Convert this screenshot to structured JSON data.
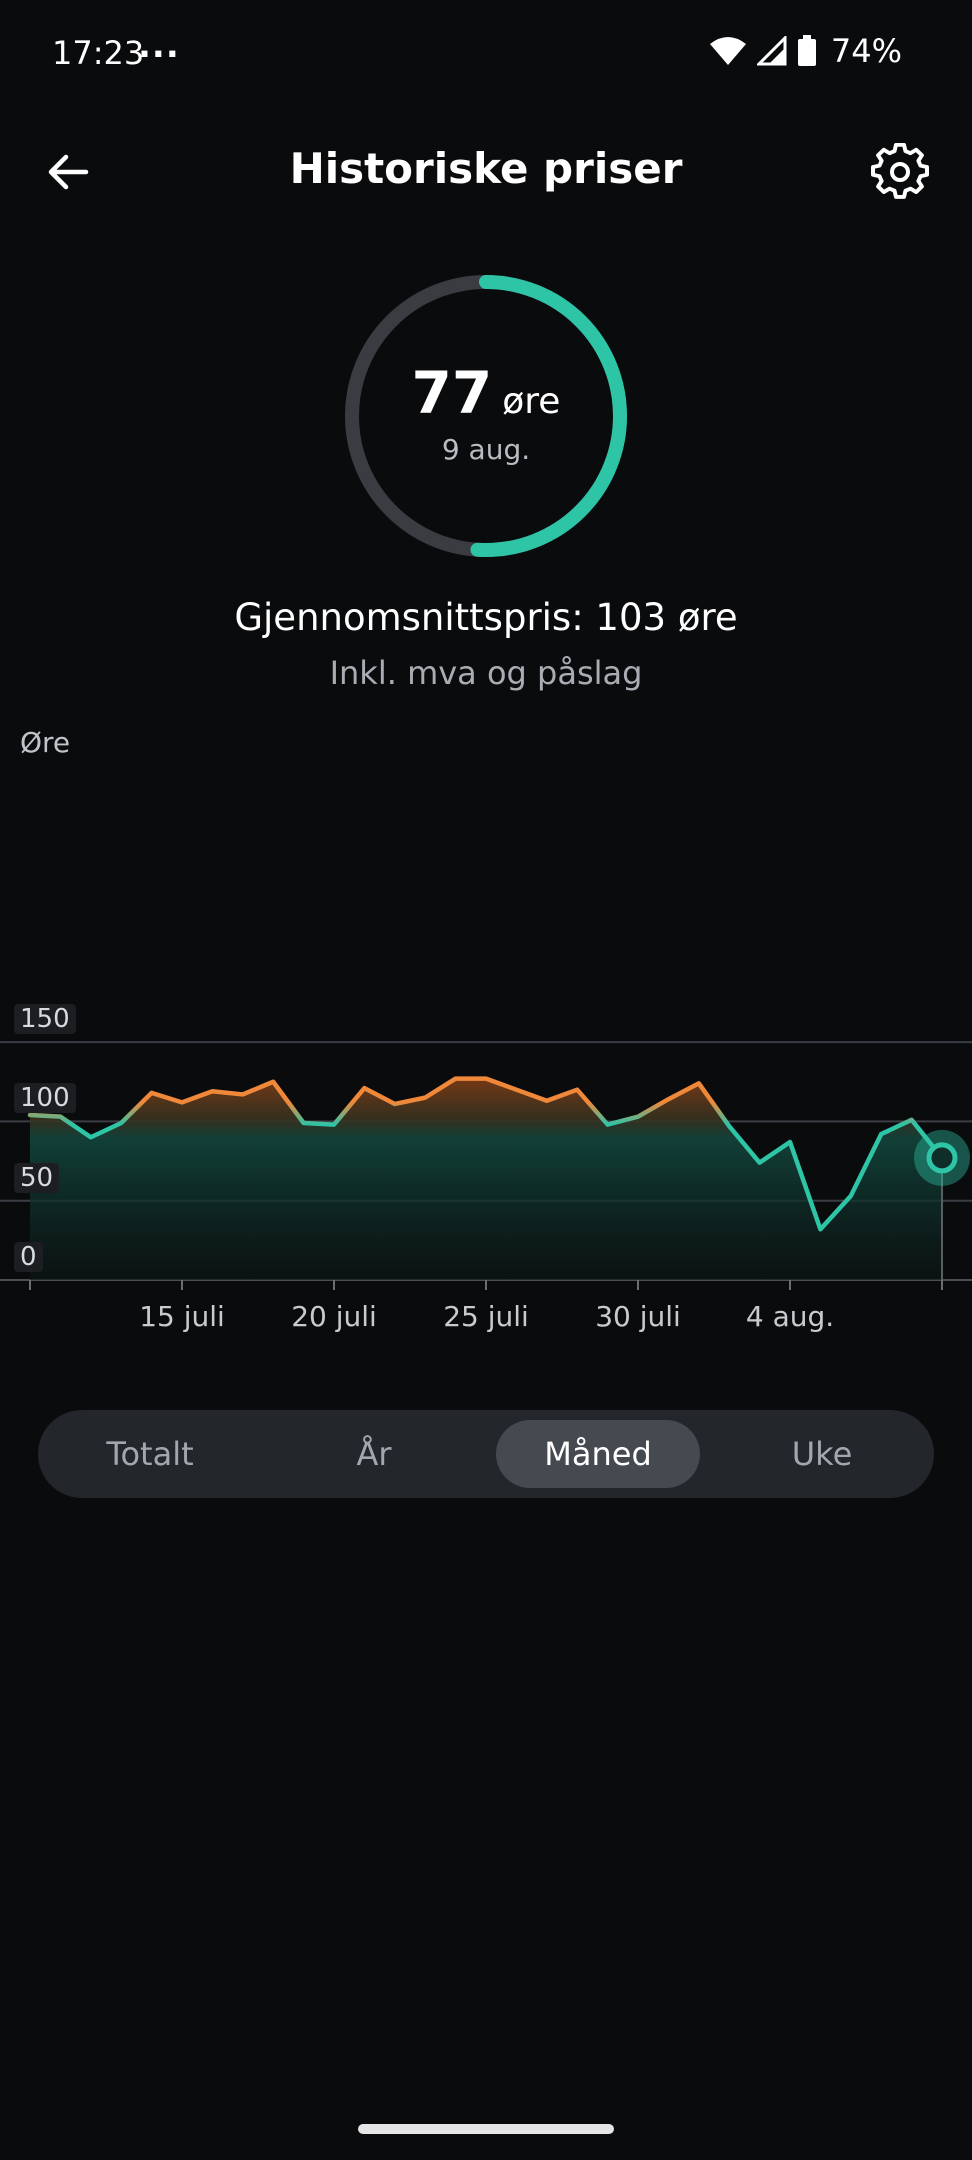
{
  "status_bar": {
    "time": "17:23",
    "dots": "...",
    "battery": "74%"
  },
  "header": {
    "title": "Historiske priser",
    "back_icon": "arrow-left-icon",
    "settings_icon": "gear-icon"
  },
  "summary": {
    "value": "77",
    "unit": "øre",
    "date": "9 aug.",
    "ring_fraction": 0.51,
    "average_label": "Gjennomsnittspris: 103 øre",
    "average_sub": "Inkl. mva og påslag"
  },
  "colors": {
    "accent": "#2ec4a6",
    "high": "#f0883a",
    "ring_track": "#3a3c42",
    "background": "#0a0b0d"
  },
  "chart_data": {
    "type": "area",
    "ylabel": "Øre",
    "y_ticks": [
      "150",
      "100",
      "50",
      "0"
    ],
    "ylim": [
      0,
      150
    ],
    "x_ticks": [
      "15 juli",
      "20 juli",
      "25 juli",
      "30 juli",
      "4 aug."
    ],
    "x_tick_days": [
      15,
      20,
      25,
      30,
      35
    ],
    "x_range": [
      10,
      40
    ],
    "average": 103,
    "grid": true,
    "series": [
      {
        "x": [
          10,
          11,
          12,
          13,
          14,
          15,
          16,
          17,
          18,
          19,
          20,
          21,
          22,
          23,
          24,
          25,
          26,
          27,
          28,
          29,
          30,
          31,
          32,
          33,
          34,
          35,
          36,
          37,
          38,
          39,
          40
        ],
        "values": [
          104,
          103,
          90,
          99,
          118,
          112,
          119,
          117,
          125,
          99,
          98,
          121,
          111,
          115,
          127,
          127,
          120,
          113,
          120,
          98,
          103,
          114,
          124,
          97,
          74,
          87,
          32,
          53,
          92,
          101,
          77
        ]
      }
    ],
    "selected_point": {
      "x": 40,
      "y": 77
    }
  },
  "tabs": [
    {
      "label": "Totalt",
      "active": false
    },
    {
      "label": "År",
      "active": false
    },
    {
      "label": "Måned",
      "active": true
    },
    {
      "label": "Uke",
      "active": false
    }
  ]
}
